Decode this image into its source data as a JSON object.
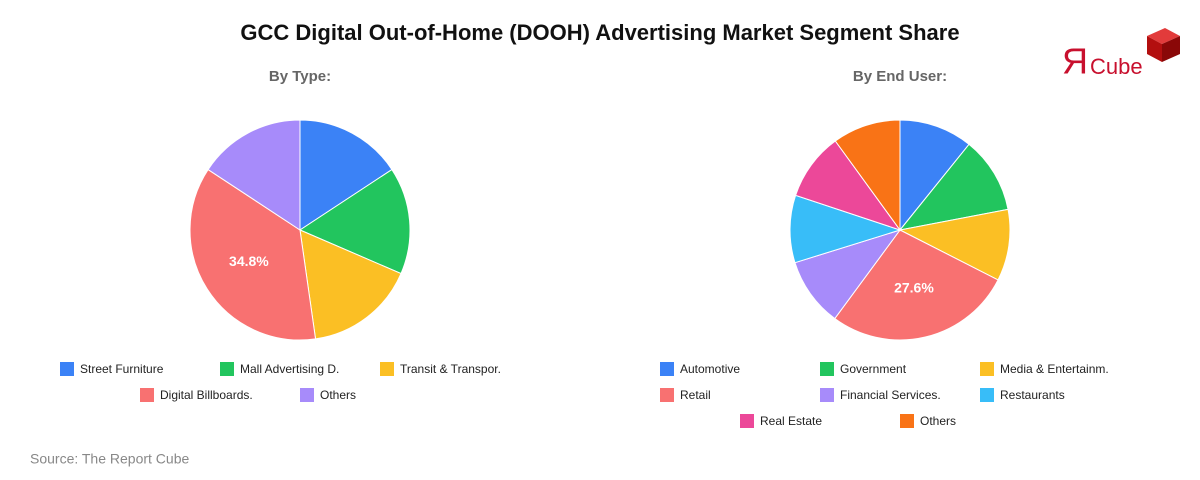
{
  "header": {
    "title": "GCC Digital Out-of-Home (DOOH) Advertising Market Segment Share",
    "logo_mark": "Я",
    "logo_text": "Cube",
    "source": "Source: The Report Cube"
  },
  "chart_data": [
    {
      "type": "pie",
      "subtitle": "By Type:",
      "categories": [
        "Street Furniture",
        "Mall Advertising D.",
        "Transit & Transpor.",
        "Digital Billboards.",
        "Others"
      ],
      "values": [
        15,
        15,
        15.5,
        34.8,
        15
      ],
      "value_labels": [
        null,
        null,
        null,
        "34.8%",
        null
      ],
      "colors": [
        "#3b82f6",
        "#22c55e",
        "#fbbf24",
        "#f87171",
        "#a78bfa"
      ]
    },
    {
      "type": "pie",
      "subtitle": "By End User:",
      "categories": [
        "Automotive",
        "Government",
        "Media & Entertainm.",
        "Retail",
        "Financial Services.",
        "Restaurants",
        "Real Estate",
        "Others"
      ],
      "values": [
        10.8,
        11.2,
        10.5,
        27.6,
        10.1,
        9.9,
        9.9,
        10.0
      ],
      "value_labels": [
        null,
        null,
        null,
        "27.6%",
        null,
        null,
        null,
        null
      ],
      "colors": [
        "#3b82f6",
        "#22c55e",
        "#fbbf24",
        "#f87171",
        "#a78bfa",
        "#38bdf8",
        "#ec4899",
        "#f97316"
      ]
    }
  ]
}
